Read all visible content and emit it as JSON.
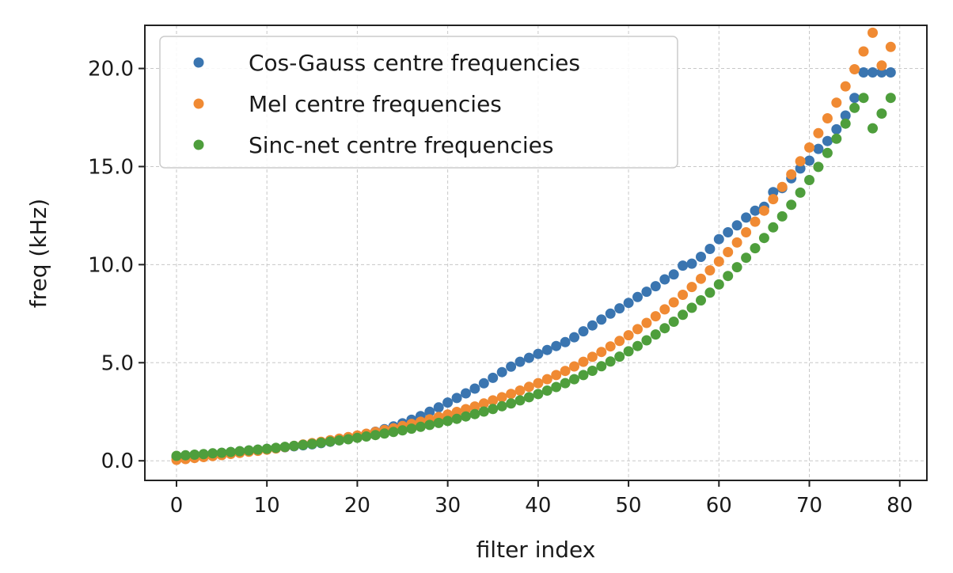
{
  "chart_data": {
    "type": "scatter",
    "xlabel": "filter index",
    "ylabel": "freq (kHz)",
    "xlim": [
      -3.5,
      83
    ],
    "ylim": [
      -1.0,
      22.2
    ],
    "xticks": [
      0,
      10,
      20,
      30,
      40,
      50,
      60,
      70,
      80
    ],
    "xtick_labels": [
      "0",
      "10",
      "20",
      "30",
      "40",
      "50",
      "60",
      "70",
      "80"
    ],
    "yticks": [
      0,
      5,
      10,
      15,
      20
    ],
    "ytick_labels": [
      "0.0",
      "5.0",
      "10.0",
      "15.0",
      "20.0"
    ],
    "grid": true,
    "legend_position": "top-left",
    "series": [
      {
        "name": "Cos-Gauss centre frequencies",
        "color": "#3a75b0",
        "x": [
          0,
          1,
          2,
          3,
          4,
          5,
          6,
          7,
          8,
          9,
          10,
          11,
          12,
          13,
          14,
          15,
          16,
          17,
          18,
          19,
          20,
          21,
          22,
          23,
          24,
          25,
          26,
          27,
          28,
          29,
          30,
          31,
          32,
          33,
          34,
          35,
          36,
          37,
          38,
          39,
          40,
          41,
          42,
          43,
          44,
          45,
          46,
          47,
          48,
          49,
          50,
          51,
          52,
          53,
          54,
          55,
          56,
          57,
          58,
          59,
          60,
          61,
          62,
          63,
          64,
          65,
          66,
          67,
          68,
          69,
          70,
          71,
          72,
          73,
          74,
          75,
          76,
          77,
          78,
          79
        ],
        "y": [
          0.2,
          0.24,
          0.28,
          0.32,
          0.36,
          0.4,
          0.44,
          0.48,
          0.52,
          0.56,
          0.6,
          0.64,
          0.69,
          0.74,
          0.79,
          0.84,
          0.9,
          0.97,
          1.05,
          1.14,
          1.25,
          1.36,
          1.48,
          1.61,
          1.75,
          1.91,
          2.09,
          2.28,
          2.5,
          2.72,
          2.97,
          3.2,
          3.44,
          3.68,
          3.95,
          4.23,
          4.52,
          4.8,
          5.05,
          5.25,
          5.45,
          5.65,
          5.85,
          6.05,
          6.3,
          6.6,
          6.9,
          7.2,
          7.5,
          7.77,
          8.05,
          8.35,
          8.62,
          8.9,
          9.25,
          9.5,
          9.95,
          10.05,
          10.4,
          10.8,
          11.3,
          11.65,
          12.0,
          12.4,
          12.75,
          12.95,
          13.7,
          13.9,
          14.4,
          14.9,
          15.3,
          15.9,
          16.3,
          16.9,
          17.6,
          18.5,
          19.8,
          19.8,
          19.8,
          19.8
        ]
      },
      {
        "name": "Mel centre frequencies",
        "color": "#f08a33",
        "x": [
          0,
          1,
          2,
          3,
          4,
          5,
          6,
          7,
          8,
          9,
          10,
          11,
          12,
          13,
          14,
          15,
          16,
          17,
          18,
          19,
          20,
          21,
          22,
          23,
          24,
          25,
          26,
          27,
          28,
          29,
          30,
          31,
          32,
          33,
          34,
          35,
          36,
          37,
          38,
          39,
          40,
          41,
          42,
          43,
          44,
          45,
          46,
          47,
          48,
          49,
          50,
          51,
          52,
          53,
          54,
          55,
          56,
          57,
          58,
          59,
          60,
          61,
          62,
          63,
          64,
          65,
          66,
          67,
          68,
          69,
          70,
          71,
          72,
          73,
          74,
          75,
          76,
          77,
          78,
          79
        ],
        "y": [
          0.05,
          0.09,
          0.14,
          0.19,
          0.24,
          0.29,
          0.35,
          0.4,
          0.46,
          0.51,
          0.57,
          0.63,
          0.7,
          0.76,
          0.83,
          0.9,
          0.97,
          1.05,
          1.13,
          1.21,
          1.29,
          1.38,
          1.47,
          1.57,
          1.66,
          1.77,
          1.88,
          1.99,
          2.11,
          2.23,
          2.36,
          2.49,
          2.63,
          2.77,
          2.92,
          3.08,
          3.24,
          3.41,
          3.58,
          3.77,
          3.96,
          4.16,
          4.37,
          4.58,
          4.81,
          5.05,
          5.3,
          5.55,
          5.83,
          6.11,
          6.4,
          6.71,
          7.03,
          7.37,
          7.72,
          8.08,
          8.46,
          8.86,
          9.28,
          9.71,
          10.16,
          10.64,
          11.13,
          11.65,
          12.19,
          12.75,
          13.34,
          13.96,
          14.6,
          15.27,
          15.97,
          16.7,
          17.46,
          18.26,
          19.09,
          19.96,
          20.87,
          21.82,
          20.15,
          21.1
        ]
      },
      {
        "name": "Sinc-net centre frequencies",
        "color": "#4e9e3c",
        "x": [
          0,
          1,
          2,
          3,
          4,
          5,
          6,
          7,
          8,
          9,
          10,
          11,
          12,
          13,
          14,
          15,
          16,
          17,
          18,
          19,
          20,
          21,
          22,
          23,
          24,
          25,
          26,
          27,
          28,
          29,
          30,
          31,
          32,
          33,
          34,
          35,
          36,
          37,
          38,
          39,
          40,
          41,
          42,
          43,
          44,
          45,
          46,
          47,
          48,
          49,
          50,
          51,
          52,
          53,
          54,
          55,
          56,
          57,
          58,
          59,
          60,
          61,
          62,
          63,
          64,
          65,
          66,
          67,
          68,
          69,
          70,
          71,
          72,
          73,
          74,
          75,
          76,
          77,
          78,
          79
        ],
        "y": [
          0.25,
          0.28,
          0.31,
          0.34,
          0.38,
          0.41,
          0.45,
          0.49,
          0.53,
          0.57,
          0.61,
          0.66,
          0.71,
          0.76,
          0.81,
          0.86,
          0.92,
          0.98,
          1.04,
          1.1,
          1.17,
          1.24,
          1.31,
          1.39,
          1.47,
          1.55,
          1.64,
          1.73,
          1.83,
          1.93,
          2.03,
          2.14,
          2.26,
          2.38,
          2.51,
          2.64,
          2.78,
          2.92,
          3.08,
          3.24,
          3.4,
          3.58,
          3.76,
          3.96,
          4.16,
          4.37,
          4.59,
          4.82,
          5.06,
          5.31,
          5.58,
          5.85,
          6.14,
          6.44,
          6.76,
          7.09,
          7.44,
          7.8,
          8.18,
          8.57,
          8.99,
          9.42,
          9.87,
          10.35,
          10.84,
          11.36,
          11.9,
          12.46,
          13.05,
          13.67,
          14.31,
          14.98,
          15.69,
          16.42,
          17.19,
          17.99,
          18.5,
          16.95,
          17.7,
          18.5
        ]
      }
    ]
  }
}
